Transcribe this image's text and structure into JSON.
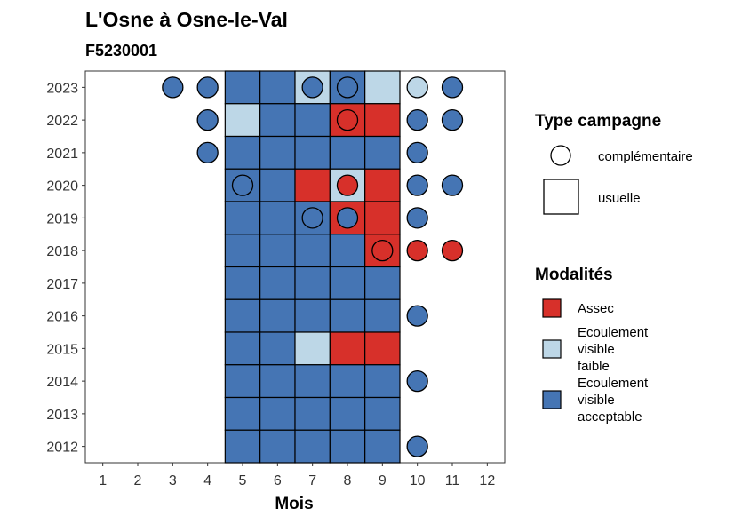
{
  "chart_data": {
    "type": "heatmap",
    "title": "L'Osne à Osne-le-Val",
    "subtitle": "F5230001",
    "xlabel": "Mois",
    "ylabel": "",
    "x_ticks": [
      "1",
      "2",
      "3",
      "4",
      "5",
      "6",
      "7",
      "8",
      "9",
      "10",
      "11",
      "12"
    ],
    "y_ticks": [
      "2023",
      "2022",
      "2021",
      "2020",
      "2019",
      "2018",
      "2017",
      "2016",
      "2015",
      "2014",
      "2013",
      "2012"
    ],
    "xlim": [
      0.5,
      12.5
    ],
    "colors": {
      "Assec": "#d7302a",
      "Ecoulement visible faible": "#bdd7e7",
      "Ecoulement visible acceptable": "#4575b4"
    },
    "legend_shape": {
      "title": "Type campagne",
      "items": [
        {
          "shape": "circle",
          "label": "complémentaire"
        },
        {
          "shape": "square",
          "label": "usuelle"
        }
      ]
    },
    "legend_fill": {
      "title": "Modalités",
      "items": [
        {
          "key": "Assec",
          "lines": [
            "Assec"
          ]
        },
        {
          "key": "Ecoulement visible faible",
          "lines": [
            "Ecoulement",
            "visible",
            "faible"
          ]
        },
        {
          "key": "Ecoulement visible acceptable",
          "lines": [
            "Ecoulement",
            "visible",
            "acceptable"
          ]
        }
      ]
    },
    "usuelle": [
      {
        "year": 2023,
        "month": 5,
        "value": "Ecoulement visible acceptable"
      },
      {
        "year": 2023,
        "month": 6,
        "value": "Ecoulement visible acceptable"
      },
      {
        "year": 2023,
        "month": 7,
        "value": "Ecoulement visible faible"
      },
      {
        "year": 2023,
        "month": 8,
        "value": "Ecoulement visible acceptable"
      },
      {
        "year": 2023,
        "month": 9,
        "value": "Ecoulement visible faible"
      },
      {
        "year": 2022,
        "month": 5,
        "value": "Ecoulement visible faible"
      },
      {
        "year": 2022,
        "month": 6,
        "value": "Ecoulement visible acceptable"
      },
      {
        "year": 2022,
        "month": 7,
        "value": "Ecoulement visible acceptable"
      },
      {
        "year": 2022,
        "month": 8,
        "value": "Assec"
      },
      {
        "year": 2022,
        "month": 9,
        "value": "Assec"
      },
      {
        "year": 2021,
        "month": 5,
        "value": "Ecoulement visible acceptable"
      },
      {
        "year": 2021,
        "month": 6,
        "value": "Ecoulement visible acceptable"
      },
      {
        "year": 2021,
        "month": 7,
        "value": "Ecoulement visible acceptable"
      },
      {
        "year": 2021,
        "month": 8,
        "value": "Ecoulement visible acceptable"
      },
      {
        "year": 2021,
        "month": 9,
        "value": "Ecoulement visible acceptable"
      },
      {
        "year": 2020,
        "month": 5,
        "value": "Ecoulement visible acceptable"
      },
      {
        "year": 2020,
        "month": 6,
        "value": "Ecoulement visible acceptable"
      },
      {
        "year": 2020,
        "month": 7,
        "value": "Assec"
      },
      {
        "year": 2020,
        "month": 8,
        "value": "Ecoulement visible faible"
      },
      {
        "year": 2020,
        "month": 9,
        "value": "Assec"
      },
      {
        "year": 2019,
        "month": 5,
        "value": "Ecoulement visible acceptable"
      },
      {
        "year": 2019,
        "month": 6,
        "value": "Ecoulement visible acceptable"
      },
      {
        "year": 2019,
        "month": 7,
        "value": "Ecoulement visible acceptable"
      },
      {
        "year": 2019,
        "month": 8,
        "value": "Assec"
      },
      {
        "year": 2019,
        "month": 9,
        "value": "Assec"
      },
      {
        "year": 2018,
        "month": 5,
        "value": "Ecoulement visible acceptable"
      },
      {
        "year": 2018,
        "month": 6,
        "value": "Ecoulement visible acceptable"
      },
      {
        "year": 2018,
        "month": 7,
        "value": "Ecoulement visible acceptable"
      },
      {
        "year": 2018,
        "month": 8,
        "value": "Ecoulement visible acceptable"
      },
      {
        "year": 2018,
        "month": 9,
        "value": "Assec"
      },
      {
        "year": 2017,
        "month": 5,
        "value": "Ecoulement visible acceptable"
      },
      {
        "year": 2017,
        "month": 6,
        "value": "Ecoulement visible acceptable"
      },
      {
        "year": 2017,
        "month": 7,
        "value": "Ecoulement visible acceptable"
      },
      {
        "year": 2017,
        "month": 8,
        "value": "Ecoulement visible acceptable"
      },
      {
        "year": 2017,
        "month": 9,
        "value": "Ecoulement visible acceptable"
      },
      {
        "year": 2016,
        "month": 5,
        "value": "Ecoulement visible acceptable"
      },
      {
        "year": 2016,
        "month": 6,
        "value": "Ecoulement visible acceptable"
      },
      {
        "year": 2016,
        "month": 7,
        "value": "Ecoulement visible acceptable"
      },
      {
        "year": 2016,
        "month": 8,
        "value": "Ecoulement visible acceptable"
      },
      {
        "year": 2016,
        "month": 9,
        "value": "Ecoulement visible acceptable"
      },
      {
        "year": 2015,
        "month": 5,
        "value": "Ecoulement visible acceptable"
      },
      {
        "year": 2015,
        "month": 6,
        "value": "Ecoulement visible acceptable"
      },
      {
        "year": 2015,
        "month": 7,
        "value": "Ecoulement visible faible"
      },
      {
        "year": 2015,
        "month": 8,
        "value": "Assec"
      },
      {
        "year": 2015,
        "month": 9,
        "value": "Assec"
      },
      {
        "year": 2014,
        "month": 5,
        "value": "Ecoulement visible acceptable"
      },
      {
        "year": 2014,
        "month": 6,
        "value": "Ecoulement visible acceptable"
      },
      {
        "year": 2014,
        "month": 7,
        "value": "Ecoulement visible acceptable"
      },
      {
        "year": 2014,
        "month": 8,
        "value": "Ecoulement visible acceptable"
      },
      {
        "year": 2014,
        "month": 9,
        "value": "Ecoulement visible acceptable"
      },
      {
        "year": 2013,
        "month": 5,
        "value": "Ecoulement visible acceptable"
      },
      {
        "year": 2013,
        "month": 6,
        "value": "Ecoulement visible acceptable"
      },
      {
        "year": 2013,
        "month": 7,
        "value": "Ecoulement visible acceptable"
      },
      {
        "year": 2013,
        "month": 8,
        "value": "Ecoulement visible acceptable"
      },
      {
        "year": 2013,
        "month": 9,
        "value": "Ecoulement visible acceptable"
      },
      {
        "year": 2012,
        "month": 5,
        "value": "Ecoulement visible acceptable"
      },
      {
        "year": 2012,
        "month": 6,
        "value": "Ecoulement visible acceptable"
      },
      {
        "year": 2012,
        "month": 7,
        "value": "Ecoulement visible acceptable"
      },
      {
        "year": 2012,
        "month": 8,
        "value": "Ecoulement visible acceptable"
      },
      {
        "year": 2012,
        "month": 9,
        "value": "Ecoulement visible acceptable"
      }
    ],
    "complementaire": [
      {
        "year": 2023,
        "month": 3,
        "value": "Ecoulement visible acceptable"
      },
      {
        "year": 2023,
        "month": 4,
        "value": "Ecoulement visible acceptable"
      },
      {
        "year": 2023,
        "month": 7,
        "value": "Ecoulement visible acceptable"
      },
      {
        "year": 2023,
        "month": 8,
        "value": "Ecoulement visible acceptable"
      },
      {
        "year": 2023,
        "month": 10,
        "value": "Ecoulement visible faible"
      },
      {
        "year": 2023,
        "month": 11,
        "value": "Ecoulement visible acceptable"
      },
      {
        "year": 2022,
        "month": 4,
        "value": "Ecoulement visible acceptable"
      },
      {
        "year": 2022,
        "month": 8,
        "value": "Assec"
      },
      {
        "year": 2022,
        "month": 10,
        "value": "Ecoulement visible acceptable"
      },
      {
        "year": 2022,
        "month": 11,
        "value": "Ecoulement visible acceptable"
      },
      {
        "year": 2021,
        "month": 4,
        "value": "Ecoulement visible acceptable"
      },
      {
        "year": 2021,
        "month": 10,
        "value": "Ecoulement visible acceptable"
      },
      {
        "year": 2020,
        "month": 5,
        "value": "Ecoulement visible acceptable"
      },
      {
        "year": 2020,
        "month": 8,
        "value": "Assec"
      },
      {
        "year": 2020,
        "month": 10,
        "value": "Ecoulement visible acceptable"
      },
      {
        "year": 2020,
        "month": 11,
        "value": "Ecoulement visible acceptable"
      },
      {
        "year": 2019,
        "month": 7,
        "value": "Ecoulement visible acceptable"
      },
      {
        "year": 2019,
        "month": 8,
        "value": "Ecoulement visible acceptable"
      },
      {
        "year": 2019,
        "month": 10,
        "value": "Ecoulement visible acceptable"
      },
      {
        "year": 2018,
        "month": 9,
        "value": "Assec"
      },
      {
        "year": 2018,
        "month": 10,
        "value": "Assec"
      },
      {
        "year": 2018,
        "month": 11,
        "value": "Assec"
      },
      {
        "year": 2016,
        "month": 10,
        "value": "Ecoulement visible acceptable"
      },
      {
        "year": 2014,
        "month": 10,
        "value": "Ecoulement visible acceptable"
      },
      {
        "year": 2012,
        "month": 10,
        "value": "Ecoulement visible acceptable"
      }
    ]
  }
}
